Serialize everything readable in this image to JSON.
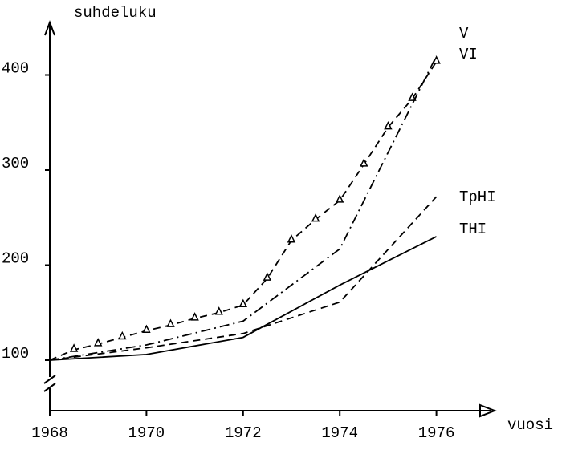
{
  "chart_data": {
    "type": "line",
    "ylabel": "suhdeluku",
    "xlabel": "vuosi",
    "xlim": [
      1968,
      1977
    ],
    "ylim": [
      100,
      460
    ],
    "xticks": [
      1968,
      1970,
      1972,
      1974,
      1976
    ],
    "yticks": [
      100,
      200,
      300,
      400
    ],
    "series": [
      {
        "name": "V",
        "color": "#000000",
        "style": "dashed",
        "marker": "triangle",
        "x": [
          1968,
          1968.5,
          1969,
          1969.5,
          1970,
          1970.5,
          1971,
          1971.5,
          1972,
          1972.5,
          1973,
          1973.5,
          1974,
          1974.5,
          1975,
          1975.5,
          1976
        ],
        "values": [
          100,
          111,
          117,
          124,
          131,
          137,
          144,
          150,
          158,
          186,
          226,
          248,
          268,
          306,
          345,
          375,
          414
        ]
      },
      {
        "name": "VI",
        "color": "#000000",
        "style": "dashdot",
        "x": [
          1968,
          1970,
          1972,
          1974,
          1976
        ],
        "values": [
          100,
          116,
          141,
          217,
          420
        ]
      },
      {
        "name": "TpHI",
        "color": "#000000",
        "style": "dashed",
        "x": [
          1968,
          1970,
          1972,
          1974,
          1976
        ],
        "values": [
          100,
          113,
          128,
          161,
          272
        ]
      },
      {
        "name": "THI",
        "color": "#000000",
        "style": "solid",
        "x": [
          1968,
          1970,
          1972,
          1974,
          1976
        ],
        "values": [
          100,
          106,
          124,
          179,
          230
        ]
      }
    ]
  }
}
